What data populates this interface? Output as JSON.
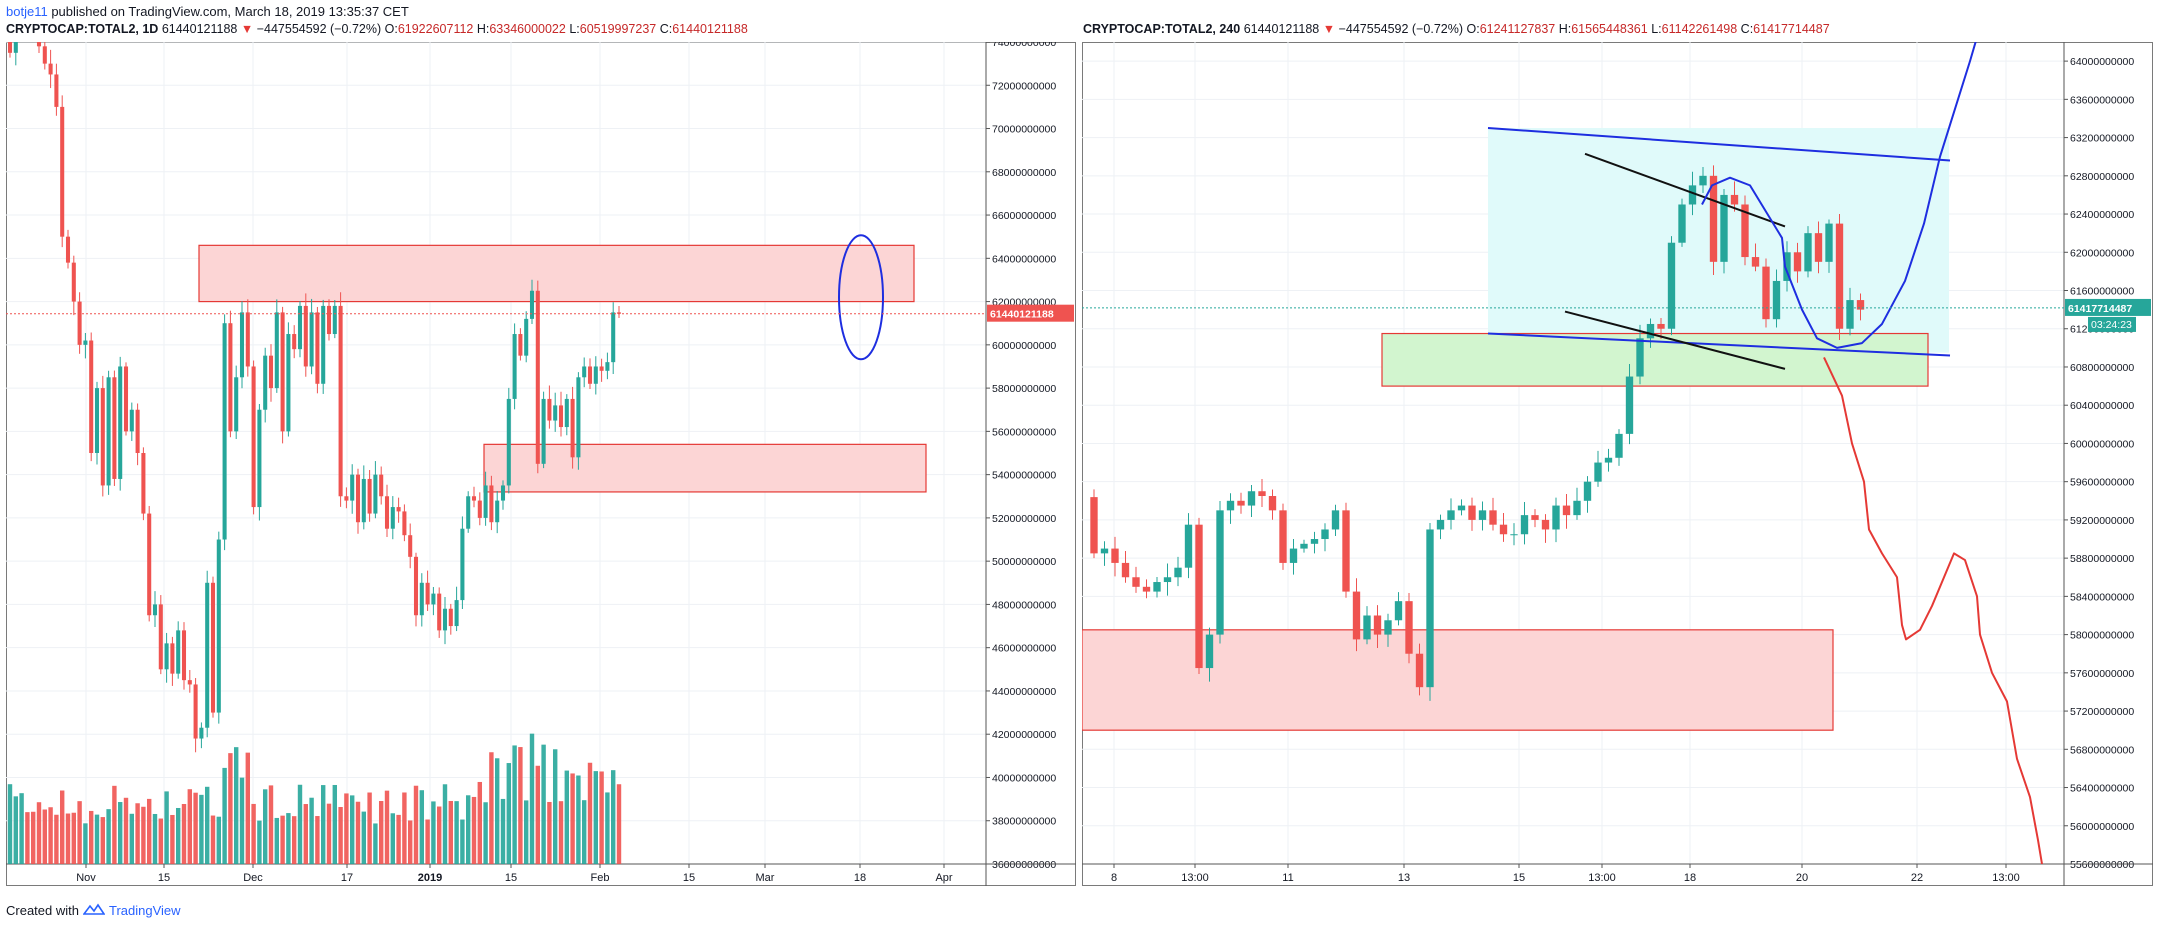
{
  "header": {
    "author": "botje11",
    "published": "published on TradingView.com, March 18, 2019 13:35:37 CET"
  },
  "footer": {
    "created_with": "Created with",
    "brand": "TradingView"
  },
  "colors": {
    "up": "#26a69a",
    "down": "#ef5350",
    "zone_fill": "#fcd5d5",
    "zone_stroke": "#e53935",
    "green_zone": "#d2f5cf",
    "cyan_zone": "#e0fafa",
    "blue_line": "#1e2ee0",
    "price_tag": "#ef5350",
    "price_tag_green": "#26a69a"
  },
  "chart_data": [
    {
      "type": "candlestick",
      "symbol": "CRYPTOCAP:TOTAL2, 1D",
      "ohlc_header": {
        "last": "61440121188",
        "change": "−447554592 (−0.72%)",
        "o_label": "O:",
        "o": "61922607112",
        "h_label": "H:",
        "h": "63346000022",
        "l_label": "L:",
        "l": "60519997237",
        "c_label": "C:",
        "c": "61440121188"
      },
      "last_price_label": "61440121188",
      "y_range": [
        36000000000,
        74000000000
      ],
      "y_ticks": [
        "74000000000",
        "72000000000",
        "70000000000",
        "68000000000",
        "66000000000",
        "64000000000",
        "62000000000",
        "60000000000",
        "58000000000",
        "56000000000",
        "54000000000",
        "52000000000",
        "50000000000",
        "48000000000",
        "46000000000",
        "44000000000",
        "42000000000",
        "40000000000",
        "38000000000",
        "36000000000"
      ],
      "x_ticks": [
        "Nov",
        "15",
        "Dec",
        "17",
        "2019",
        "15",
        "Feb",
        "15",
        "Mar",
        "18",
        "Apr"
      ],
      "series_close": [
        73500,
        74800,
        76000,
        75200,
        74600,
        73800,
        73000,
        72500,
        71000,
        65000,
        63800,
        62000,
        60000,
        60200,
        55000,
        58000,
        53500,
        58500,
        53800,
        59000,
        56000,
        57000,
        55000,
        52200,
        47500,
        48000,
        45000,
        46200,
        44800,
        46800,
        44500,
        44300,
        41800,
        42300,
        49000,
        43000,
        51000,
        61000,
        56000,
        58500,
        61500,
        59000,
        52500,
        57000,
        59500,
        58000,
        61500,
        56000,
        60500,
        59800,
        61800,
        59000,
        61500,
        58200,
        61800,
        60500,
        61800,
        53000,
        52800,
        54000,
        51800,
        53800,
        52200,
        54000,
        53000,
        51500,
        52500,
        52300,
        51200,
        50200,
        47500,
        49000,
        48000,
        48500,
        46800,
        47800,
        47000,
        48200,
        51500,
        53000,
        52800,
        52000,
        53500,
        51800,
        52800,
        53500,
        57500,
        60500,
        59500,
        61200,
        62500,
        54500,
        57500,
        56500,
        57200,
        56200,
        57500,
        54800,
        58500,
        59000,
        58200,
        59000,
        58800,
        59200,
        61500,
        61440
      ],
      "annotations": [
        "resistance zone",
        "support zone",
        "blue circled top"
      ]
    },
    {
      "type": "candlestick",
      "symbol": "CRYPTOCAP:TOTAL2, 240",
      "ohlc_header": {
        "last": "61440121188",
        "change": "−447554592 (−0.72%)",
        "o_label": "O:",
        "o": "61241127837",
        "h_label": "H:",
        "h": "61565448361",
        "l_label": "L:",
        "l": "61142261498",
        "c_label": "C:",
        "c": "61417714487"
      },
      "last_price_label": "61417714487",
      "countdown_label": "03:24:23",
      "y_range": [
        55600000000,
        64200000000
      ],
      "y_ticks": [
        "64000000000",
        "63600000000",
        "63200000000",
        "62800000000",
        "62400000000",
        "62000000000",
        "61600000000",
        "61200000000",
        "60800000000",
        "60400000000",
        "60000000000",
        "59600000000",
        "59200000000",
        "58800000000",
        "58400000000",
        "58000000000",
        "57600000000",
        "57200000000",
        "56800000000",
        "56400000000",
        "56000000000",
        "55600000000"
      ],
      "x_ticks": [
        "8",
        "13:00",
        "11",
        "13",
        "15",
        "13:00",
        "18",
        "20",
        "22",
        "13:00"
      ],
      "series_close": [
        58850,
        58900,
        58750,
        58600,
        58500,
        58450,
        58550,
        58600,
        58700,
        59150,
        57650,
        58000,
        59300,
        59400,
        59350,
        59500,
        59450,
        59300,
        58750,
        58900,
        58950,
        59000,
        59100,
        59300,
        58450,
        57950,
        58200,
        58000,
        58150,
        58350,
        57800,
        57450,
        59100,
        59200,
        59300,
        59350,
        59200,
        59300,
        59150,
        59050,
        59050,
        59250,
        59200,
        59100,
        59350,
        59250,
        59400,
        59600,
        59800,
        59850,
        60100,
        60700,
        61100,
        61250,
        61200,
        62100,
        62500,
        62700,
        62800,
        61900,
        62600,
        62500,
        61950,
        61850,
        61300,
        61700,
        62000,
        61800,
        62200,
        61900,
        62300,
        61200,
        61500,
        61400
      ],
      "annotations": [
        "falling channel",
        "projected path up",
        "projected path down"
      ]
    }
  ]
}
